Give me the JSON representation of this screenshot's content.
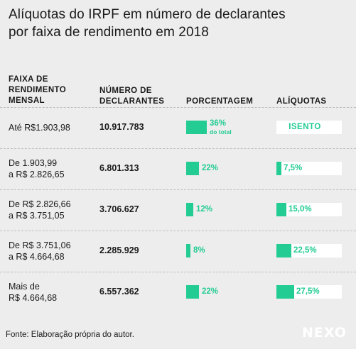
{
  "title": {
    "line1": "Alíquotas do IRPF em número de declarantes",
    "line2": "por faixa de rendimento em 2018"
  },
  "headers": {
    "range": [
      "FAIXA DE",
      "RENDIMENTO",
      "MENSAL"
    ],
    "count": [
      "NÚMERO DE",
      "DECLARANTES"
    ],
    "pct": "PORCENTAGEM",
    "rate": "ALÍQUOTAS"
  },
  "chart_data": {
    "type": "table",
    "columns": [
      "FAIXA DE RENDIMENTO MENSAL",
      "NÚMERO DE DECLARANTES",
      "PORCENTAGEM",
      "ALÍQUOTAS"
    ],
    "rows": [
      {
        "range": [
          "Até R$1.903,98"
        ],
        "count": "10.917.783",
        "pct": 36,
        "pct_label": "36%",
        "pct_note": "do total",
        "rate": 0,
        "rate_label": "ISENTO"
      },
      {
        "range": [
          "De 1.903,99",
          "a R$ 2.826,65"
        ],
        "count": "6.801.313",
        "pct": 22,
        "pct_label": "22%",
        "rate": 7.5,
        "rate_label": "7,5%"
      },
      {
        "range": [
          "De R$ 2.826,66",
          "a R$ 3.751,05"
        ],
        "count": "3.706.627",
        "pct": 12,
        "pct_label": "12%",
        "rate": 15.0,
        "rate_label": "15,0%"
      },
      {
        "range": [
          "De R$ 3.751,06",
          "a R$ 4.664,68"
        ],
        "count": "2.285.929",
        "pct": 8,
        "pct_label": "8%",
        "rate": 22.5,
        "rate_label": "22,5%"
      },
      {
        "range": [
          "Mais de",
          "R$ 4.664,68"
        ],
        "count": "6.557.362",
        "pct": 22,
        "pct_label": "22%",
        "rate": 27.5,
        "rate_label": "27,5%"
      }
    ],
    "pct_max": 36,
    "rate_max": 100
  },
  "colors": {
    "accent": "#23cc92",
    "background": "#ededed",
    "track": "#ffffff"
  },
  "source": "Fonte: Elaboração própria do autor.",
  "logo": "NEXO"
}
